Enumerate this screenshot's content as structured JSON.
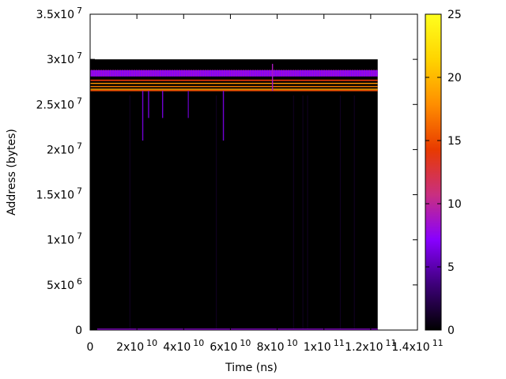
{
  "chart_data": {
    "type": "heatmap",
    "title": "",
    "xlabel": "Time (ns)",
    "ylabel": "Address (bytes)",
    "xlim": [
      0,
      140000000000
    ],
    "ylim": [
      0,
      35000000
    ],
    "x_ticks": [
      {
        "value": 0,
        "label": "0",
        "exp": ""
      },
      {
        "value": 20000000000,
        "label": "2x10",
        "exp": "10"
      },
      {
        "value": 40000000000,
        "label": "4x10",
        "exp": "10"
      },
      {
        "value": 60000000000,
        "label": "6x10",
        "exp": "10"
      },
      {
        "value": 80000000000,
        "label": "8x10",
        "exp": "10"
      },
      {
        "value": 100000000000,
        "label": "1x10",
        "exp": "11"
      },
      {
        "value": 120000000000,
        "label": "1.2x10",
        "exp": "11"
      },
      {
        "value": 140000000000,
        "label": "1.4x10",
        "exp": "11"
      }
    ],
    "y_ticks": [
      {
        "value": 0,
        "label": "0",
        "exp": ""
      },
      {
        "value": 5000000,
        "label": "5x10",
        "exp": "6"
      },
      {
        "value": 10000000,
        "label": "1x10",
        "exp": "7"
      },
      {
        "value": 15000000,
        "label": "1.5x10",
        "exp": "7"
      },
      {
        "value": 20000000,
        "label": "2x10",
        "exp": "7"
      },
      {
        "value": 25000000,
        "label": "2.5x10",
        "exp": "7"
      },
      {
        "value": 30000000,
        "label": "3x10",
        "exp": "7"
      },
      {
        "value": 35000000,
        "label": "3.5x10",
        "exp": "7"
      }
    ],
    "data_extent": {
      "x": [
        0,
        123000000000
      ],
      "y": [
        0,
        30000000
      ]
    },
    "background_value": 0,
    "bands": [
      {
        "y_start": 28100000,
        "y_end": 28800000,
        "value": 7
      },
      {
        "y_start": 27600000,
        "y_end": 27750000,
        "value": 14
      },
      {
        "y_start": 27300000,
        "y_end": 27400000,
        "value": 18
      },
      {
        "y_start": 26950000,
        "y_end": 27050000,
        "value": 17
      },
      {
        "y_start": 26650000,
        "y_end": 26750000,
        "value": 19
      },
      {
        "y_start": 26500000,
        "y_end": 26600000,
        "value": 15
      },
      {
        "y_start": 0,
        "y_end": 150000,
        "value": 8
      }
    ],
    "spikes": [
      {
        "x": 22500000000,
        "y_from": 21000000,
        "y_to": 26500000,
        "value": 6
      },
      {
        "x": 25000000000,
        "y_from": 23500000,
        "y_to": 26500000,
        "value": 6
      },
      {
        "x": 31000000000,
        "y_from": 23500000,
        "y_to": 26500000,
        "value": 6
      },
      {
        "x": 42000000000,
        "y_from": 23500000,
        "y_to": 26500000,
        "value": 5
      },
      {
        "x": 57000000000,
        "y_from": 21000000,
        "y_to": 26500000,
        "value": 6
      },
      {
        "x": 78000000000,
        "y_from": 26500000,
        "y_to": 29500000,
        "value": 9
      }
    ],
    "faint_lines_x": [
      17000000000,
      54000000000,
      87000000000,
      91000000000,
      93000000000,
      107000000000,
      113000000000
    ],
    "colorbar": {
      "min": 0,
      "max": 25,
      "ticks": [
        0,
        5,
        10,
        15,
        20,
        25
      ],
      "colors": [
        "#000000",
        "#3d0078",
        "#8800ff",
        "#c92f80",
        "#e83a00",
        "#ff8e00",
        "#ffd400",
        "#ffff1e"
      ]
    },
    "grid": false,
    "legend": "none"
  }
}
